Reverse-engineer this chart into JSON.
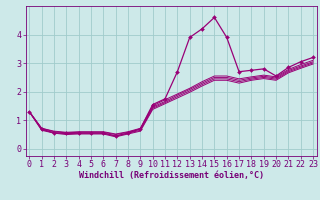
{
  "xlabel": "Windchill (Refroidissement éolien,°C)",
  "background_color": "#cde9e9",
  "grid_color": "#a0cccc",
  "line_color": "#990077",
  "x_ticks": [
    0,
    1,
    2,
    3,
    4,
    5,
    6,
    7,
    8,
    9,
    10,
    11,
    12,
    13,
    14,
    15,
    16,
    17,
    18,
    19,
    20,
    21,
    22,
    23
  ],
  "y_ticks": [
    0,
    1,
    2,
    3,
    4
  ],
  "xlim": [
    -0.3,
    23.3
  ],
  "ylim": [
    -0.25,
    5.0
  ],
  "series": [
    [
      1.3,
      0.7,
      0.55,
      0.55,
      0.55,
      0.55,
      0.55,
      0.45,
      0.55,
      0.7,
      1.55,
      1.75,
      2.7,
      3.9,
      4.2,
      4.6,
      3.9,
      2.7,
      2.75,
      2.8,
      2.55,
      2.85,
      3.05,
      3.2
    ],
    [
      1.3,
      0.72,
      0.62,
      0.58,
      0.6,
      0.6,
      0.6,
      0.52,
      0.6,
      0.72,
      1.5,
      1.72,
      1.92,
      2.12,
      2.35,
      2.55,
      2.55,
      2.45,
      2.52,
      2.58,
      2.52,
      2.78,
      2.95,
      3.1
    ],
    [
      1.3,
      0.72,
      0.6,
      0.56,
      0.58,
      0.58,
      0.58,
      0.5,
      0.58,
      0.7,
      1.46,
      1.66,
      1.88,
      2.08,
      2.3,
      2.5,
      2.5,
      2.4,
      2.48,
      2.54,
      2.48,
      2.74,
      2.9,
      3.05
    ],
    [
      1.3,
      0.67,
      0.57,
      0.53,
      0.55,
      0.55,
      0.55,
      0.45,
      0.55,
      0.65,
      1.42,
      1.62,
      1.83,
      2.03,
      2.25,
      2.45,
      2.45,
      2.35,
      2.44,
      2.5,
      2.44,
      2.7,
      2.86,
      3.01
    ],
    [
      1.3,
      0.65,
      0.55,
      0.5,
      0.52,
      0.52,
      0.52,
      0.42,
      0.52,
      0.62,
      1.38,
      1.58,
      1.78,
      1.98,
      2.2,
      2.4,
      2.4,
      2.3,
      2.4,
      2.46,
      2.4,
      2.66,
      2.82,
      2.97
    ]
  ],
  "xlabel_fontsize": 6,
  "tick_fontsize": 6,
  "xlabel_color": "#770077",
  "tick_color": "#770077",
  "spine_color": "#770077",
  "marker": "D",
  "markersize": 2.0
}
